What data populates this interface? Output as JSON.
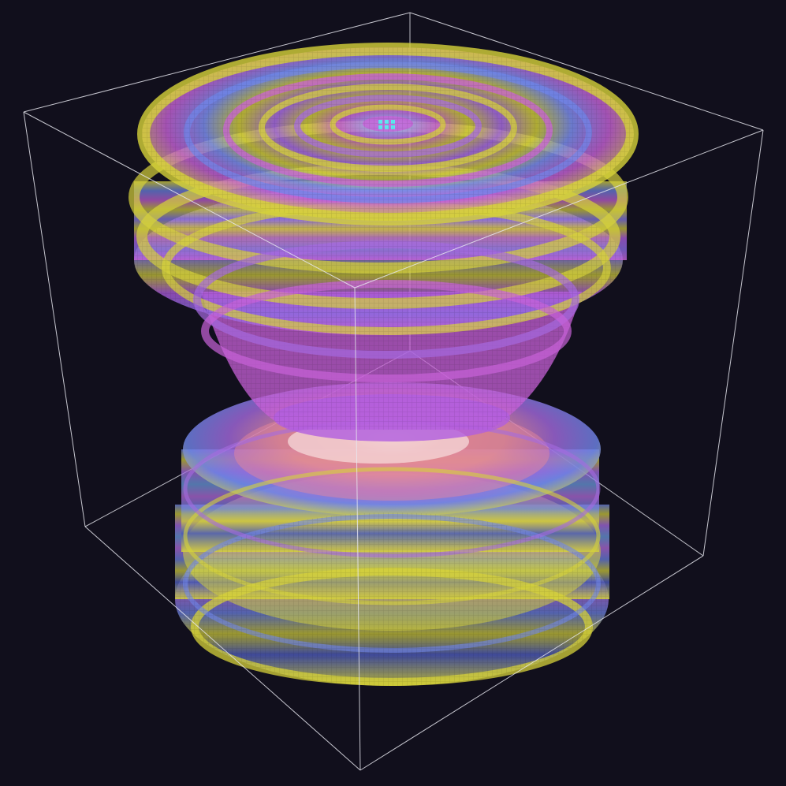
{
  "scene": {
    "background": "#110f1c",
    "bounding_box_color": "#e6e6ee",
    "palette": {
      "yellow": "#d6d23a",
      "blue": "#6f86ea",
      "violet": "#a56ae0",
      "magenta": "#c862d8",
      "salmon": "#e88a9a",
      "peach": "#f2c6c6",
      "cyan": "#5ee8f0"
    }
  }
}
